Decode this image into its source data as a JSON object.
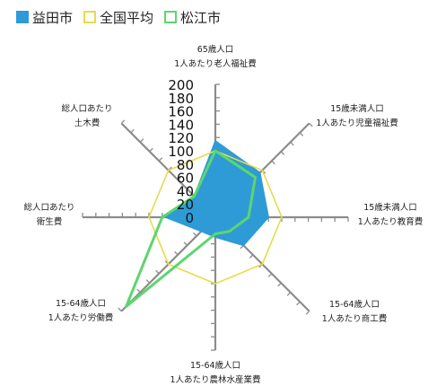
{
  "chart_data": {
    "type": "radar",
    "title": "",
    "categories": [
      [
        "65歳人口",
        "1人あたり老人福祉費"
      ],
      [
        "15歳未満人口",
        "1人あたり児童福祉費"
      ],
      [
        "15歳未満人口",
        "1人あたり教育費"
      ],
      [
        "15-64歳人口",
        "1人あたり商工費"
      ],
      [
        "15-64歳人口",
        "1人あたり農林水産業費"
      ],
      [
        "15-64歳人口",
        "1人あたり労働費"
      ],
      [
        "総人口あたり",
        "衛生費"
      ],
      [
        "総人口あたり",
        "土木費"
      ]
    ],
    "rlim": [
      0,
      200
    ],
    "ticks": [
      "0",
      "20",
      "40",
      "60",
      "80",
      "100",
      "120",
      "140",
      "160",
      "180",
      "200"
    ],
    "series": [
      {
        "name": "益田市",
        "color": "#2E9BD6",
        "style": "filled",
        "values": [
          115,
          95,
          80,
          60,
          30,
          30,
          75,
          45
        ]
      },
      {
        "name": "全国平均",
        "color": "#E6DC4A",
        "style": "line",
        "values": [
          100,
          100,
          100,
          100,
          100,
          100,
          100,
          100
        ]
      },
      {
        "name": "松江市",
        "color": "#5CD66E",
        "style": "line",
        "values": [
          100,
          85,
          50,
          30,
          25,
          190,
          80,
          45
        ]
      }
    ]
  }
}
